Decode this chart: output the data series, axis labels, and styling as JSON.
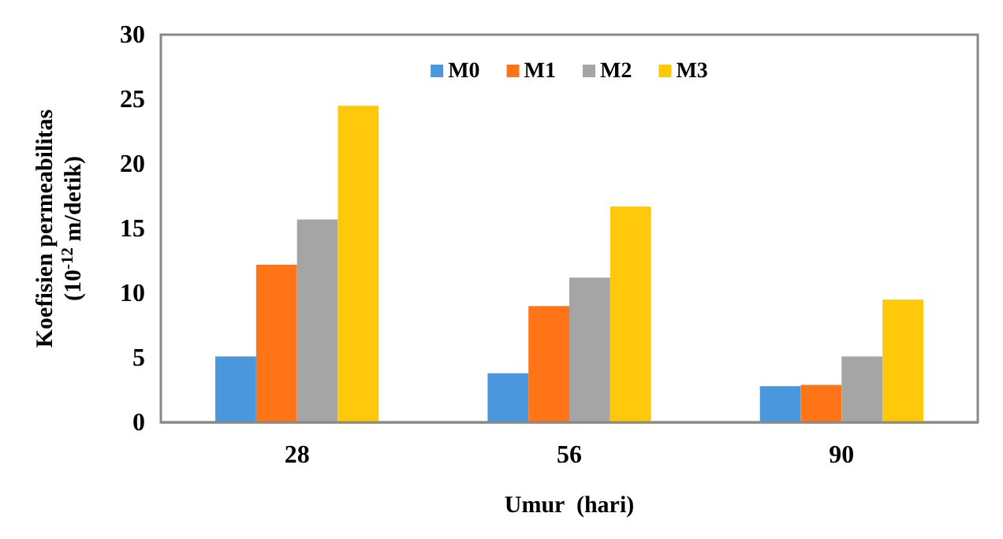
{
  "chart_data": {
    "type": "bar",
    "xlabel": "Umur  (hari)",
    "ylabel": "Koefisien permeabilitas\n(10$^{-12}$ m/detik)",
    "categories": [
      "28",
      "56",
      "90"
    ],
    "series": [
      {
        "name": "M0",
        "color": "#4a97de",
        "values": [
          5.1,
          3.8,
          2.8
        ]
      },
      {
        "name": "M1",
        "color": "#ff7417",
        "values": [
          12.2,
          9.0,
          2.9
        ]
      },
      {
        "name": "M2",
        "color": "#a5a5a5",
        "values": [
          15.7,
          11.2,
          5.1
        ]
      },
      {
        "name": "M3",
        "color": "#ffc80a",
        "values": [
          24.5,
          16.7,
          9.5
        ]
      }
    ],
    "ylim": [
      0,
      30
    ],
    "yticks": [
      0,
      5,
      10,
      15,
      20,
      25,
      30
    ],
    "legend": "top"
  }
}
